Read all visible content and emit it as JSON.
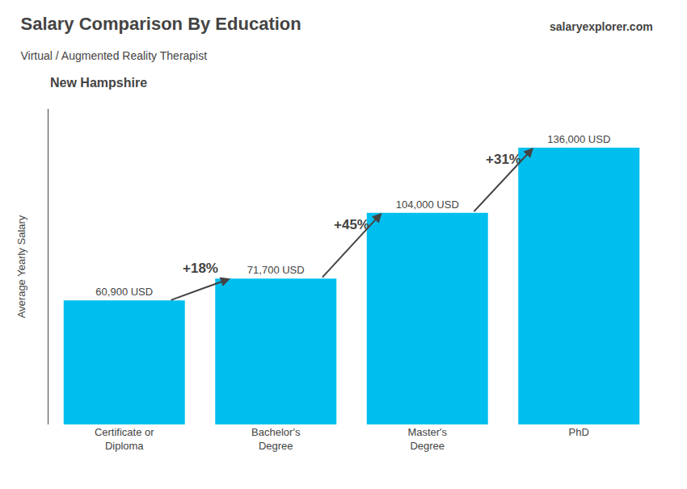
{
  "chart_data": {
    "type": "bar",
    "title": "Salary Comparison By Education",
    "subtitle": "Virtual / Augmented Reality Therapist",
    "ylabel": "Average Yearly Salary",
    "categories": [
      "Certificate or\nDiploma",
      "Bachelor's\nDegree",
      "Master's\nDegree",
      "PhD"
    ],
    "values": [
      60900,
      71700,
      104000,
      136000
    ],
    "value_labels": [
      "60,900 USD",
      "71,700 USD",
      "104,000 USD",
      "136,000 USD"
    ],
    "data_labels": true,
    "color": "#00bfef",
    "ylim": [
      0,
      155000
    ],
    "grid": false,
    "tick_labels": "x",
    "annotations": [
      {
        "text": "+18%",
        "from": "Certificate or\nDiploma",
        "to": "Bachelor's\nDegree"
      },
      {
        "text": "+45%",
        "from": "Bachelor's\nDegree",
        "to": "Master's\nDegree"
      },
      {
        "text": "+31%",
        "from": "Master's\nDegree",
        "to": "PhD"
      },
      {
        "text": "New Hampshire"
      },
      {
        "text": "salaryexplorer.com"
      }
    ]
  }
}
